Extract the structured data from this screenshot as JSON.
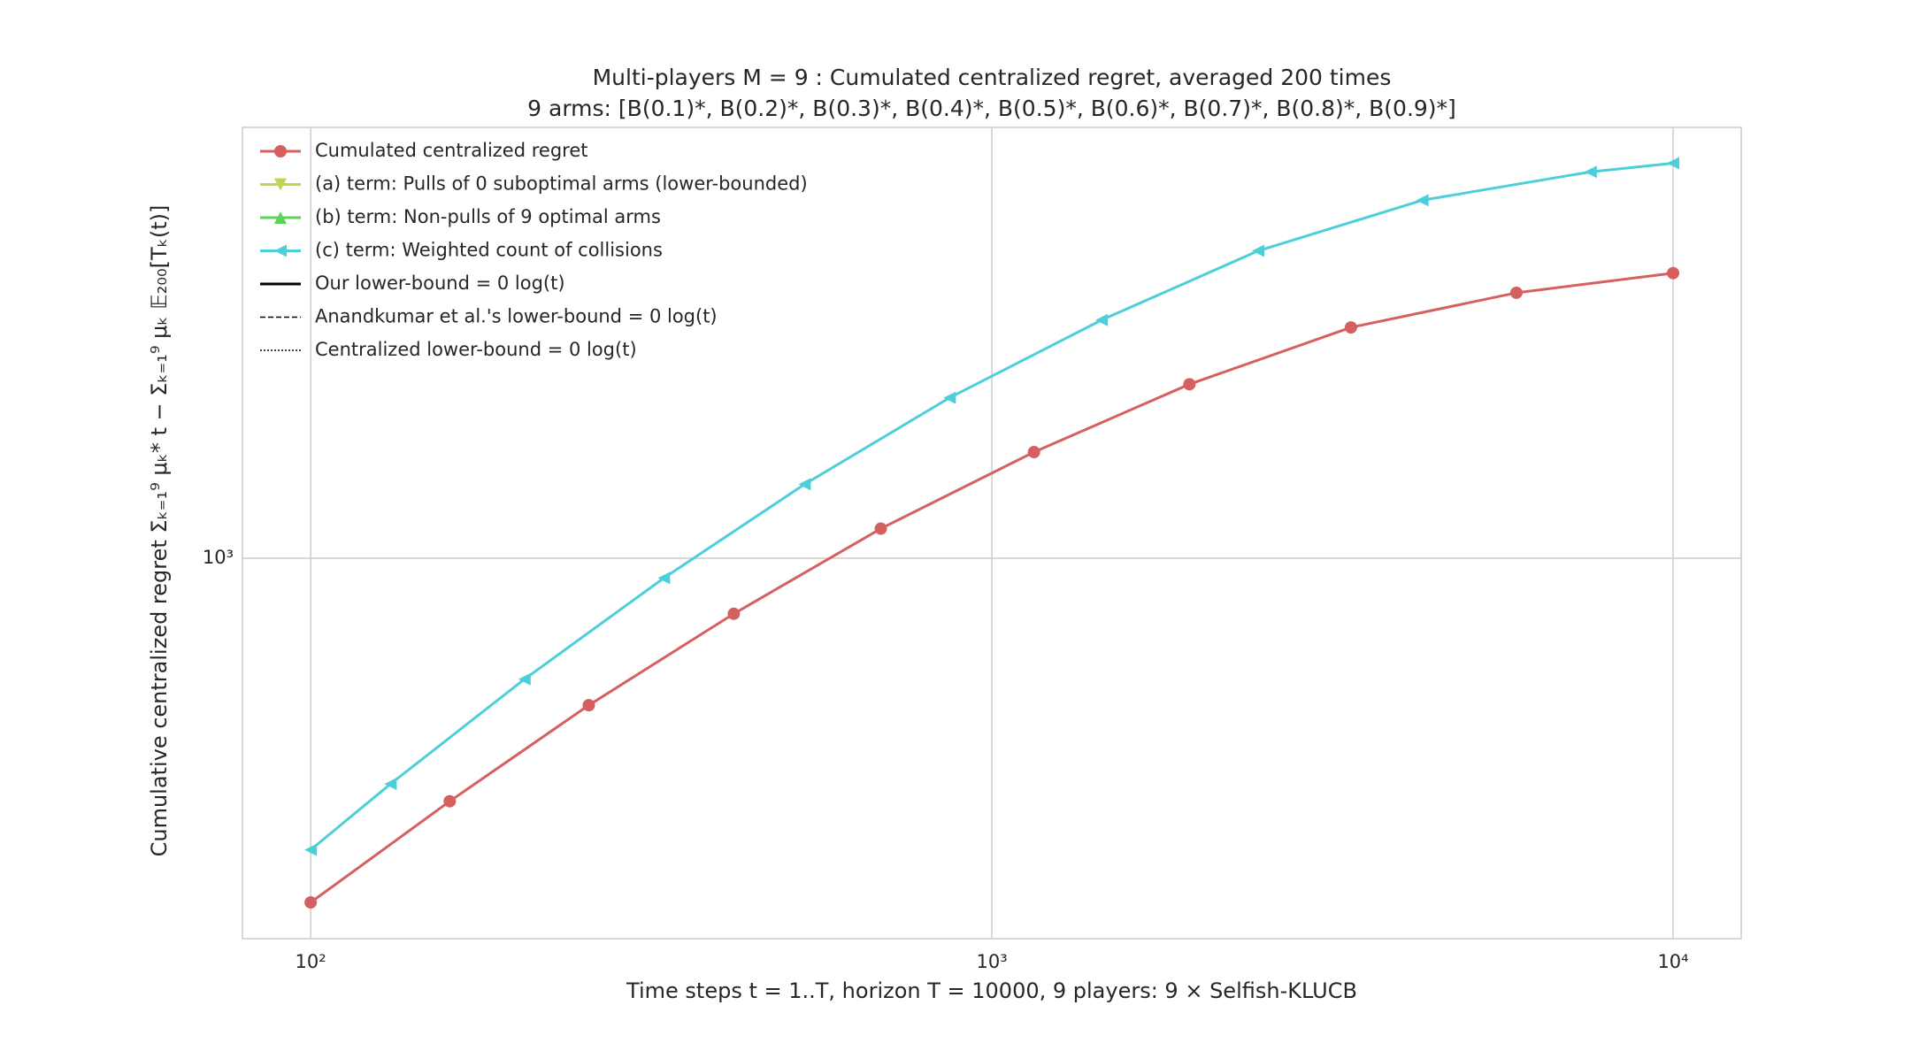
{
  "chart_data": {
    "type": "line",
    "title": "Multi-players M = 9 : Cumulated centralized regret, averaged 200 times",
    "subtitle": "9 arms: [B(0.1)*, B(0.2)*, B(0.3)*, B(0.4)*, B(0.5)*, B(0.6)*, B(0.7)*, B(0.8)*, B(0.9)*]",
    "x_label": "Time steps t = 1..T, horizon T = 10000, 9 players: 9 × Selfish-KLUCB",
    "y_label": "Cumulative centralized regret  Σₖ₌₁⁹ μₖ* t − Σₖ₌₁⁹ μₖ 𝔼₂₀₀[Tₖ(t)]",
    "x_log": true,
    "y_log": true,
    "grid": true,
    "legend": "upper left",
    "xlim": [
      79.4,
      12589
    ],
    "ylim": [
      242,
      4989
    ],
    "xticks": [
      {
        "value": 100,
        "label": "10²"
      },
      {
        "value": 1000,
        "label": "10³"
      },
      {
        "value": 10000,
        "label": "10⁴"
      }
    ],
    "yticks": [
      {
        "value": 1000,
        "label": "10³"
      }
    ],
    "series": [
      {
        "name": "Cumulated centralized regret",
        "color": "#d65f5f",
        "marker": "circle",
        "dash": "solid",
        "x": [
          100,
          160,
          256,
          418,
          687,
          1153,
          1950,
          3366,
          5888,
          10000
        ],
        "values": [
          277,
          404,
          578,
          813,
          1117,
          1486,
          1914,
          2366,
          2692,
          2897
        ]
      },
      {
        "name": "(a) term: Pulls of 0 suboptimal arms (lower-bounded)",
        "color": "#c4d44e",
        "marker": "triangle-down",
        "dash": "solid",
        "x": [],
        "values": []
      },
      {
        "name": "(b) term: Non-pulls of 9 optimal arms",
        "color": "#5bd35b",
        "marker": "triangle-up",
        "dash": "solid",
        "x": [],
        "values": []
      },
      {
        "name": "(c) term: Weighted count of collisions",
        "color": "#4dcfd9",
        "marker": "triangle-left",
        "dash": "solid",
        "x": [
          100,
          131,
          206,
          330,
          531,
          867,
          1449,
          2460,
          4285,
          7568,
          10000
        ],
        "values": [
          337,
          431,
          637,
          929,
          1318,
          1820,
          2432,
          3148,
          3802,
          4227,
          4365
        ]
      },
      {
        "name": "Our lower-bound = 0 log(t)",
        "color": "#000000",
        "marker": "none",
        "dash": "solid",
        "x": [],
        "values": []
      },
      {
        "name": "Anandkumar et al.'s lower-bound = 0 log(t)",
        "color": "#000000",
        "marker": "none",
        "dash": "dashed",
        "x": [],
        "values": []
      },
      {
        "name": "Centralized lower-bound = 0 log(t)",
        "color": "#000000",
        "marker": "none",
        "dash": "dotted",
        "x": [],
        "values": []
      }
    ]
  }
}
